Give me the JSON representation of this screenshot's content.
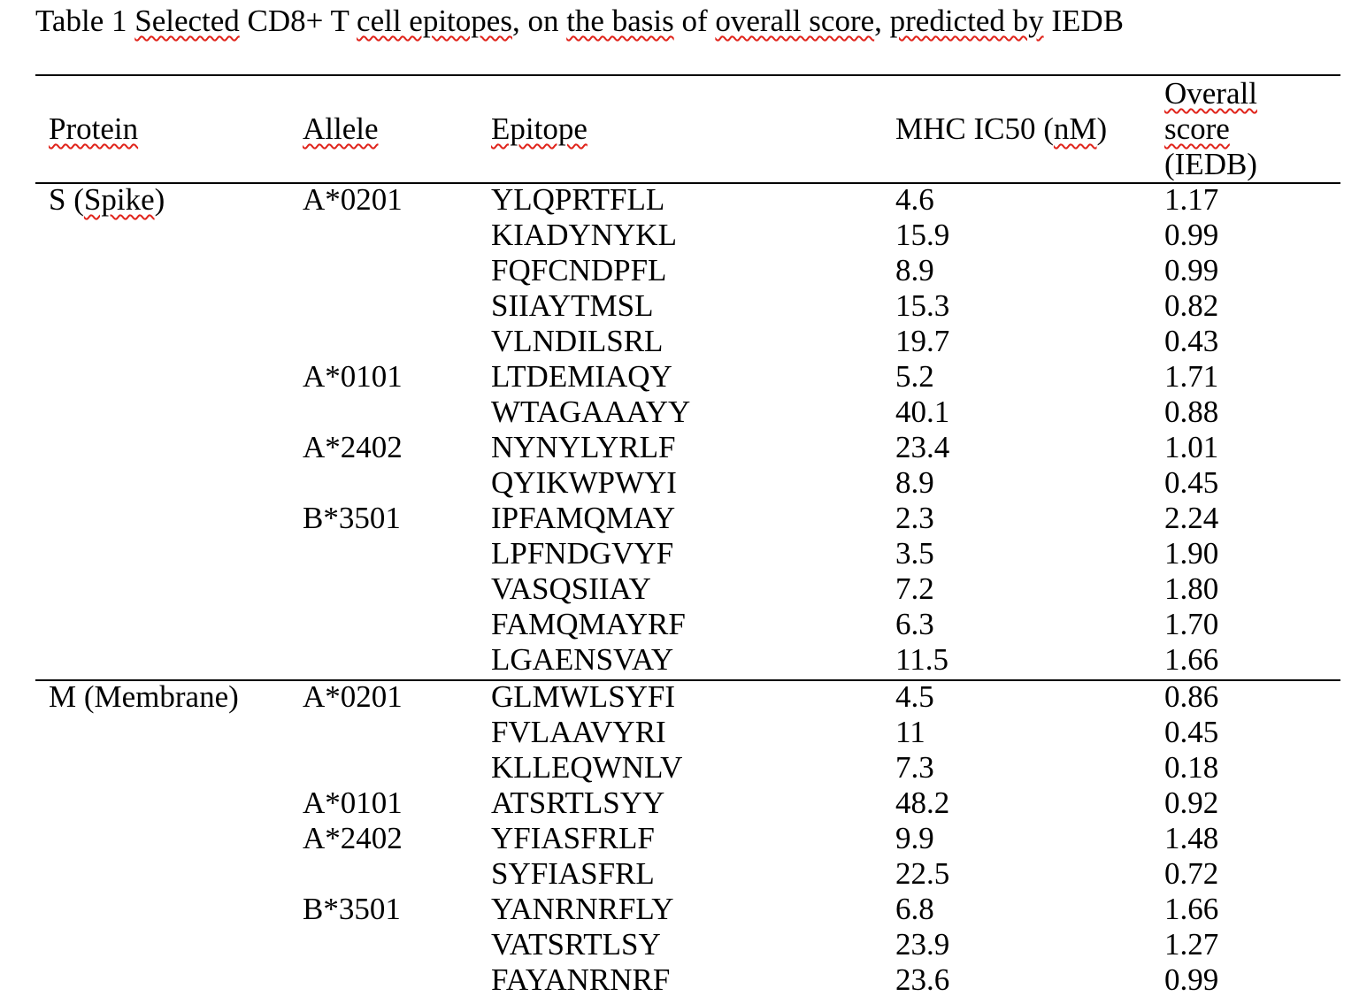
{
  "caption": {
    "prefix": "Table 1 ",
    "w1": "Selected",
    "mid1": " CD8+ T ",
    "w2": "cell epitopes",
    "mid2": ", on ",
    "w3": "the basis",
    "mid3": " of ",
    "w4": "overall score",
    "mid4": ", ",
    "w5": "predicted by",
    "suffix": " IEDB"
  },
  "headers": {
    "protein": "Protein",
    "allele": "Allele",
    "epitope": "Epitope",
    "ic50_prefix": "MHC IC50 (",
    "ic50_unit": "nM",
    "ic50_suffix": ")",
    "score_line1": "Overall",
    "score_line2": "score",
    "score_line3": "(IEDB)"
  },
  "rows": [
    {
      "protein_pre": "S (",
      "protein_sq": "Spike",
      "protein_post": ")",
      "allele": "A*0201",
      "epitope": "YLQPRTFLL",
      "ic50": "4.6",
      "score": "1.17"
    },
    {
      "protein_pre": "",
      "protein_sq": "",
      "protein_post": "",
      "allele": "",
      "epitope": "KIADYNYKL",
      "ic50": "15.9",
      "score": "0.99"
    },
    {
      "protein_pre": "",
      "protein_sq": "",
      "protein_post": "",
      "allele": "",
      "epitope": "FQFCNDPFL",
      "ic50": "8.9",
      "score": "0.99"
    },
    {
      "protein_pre": "",
      "protein_sq": "",
      "protein_post": "",
      "allele": "",
      "epitope": "SIIAYTMSL",
      "ic50": "15.3",
      "score": "0.82"
    },
    {
      "protein_pre": "",
      "protein_sq": "",
      "protein_post": "",
      "allele": "",
      "epitope": "VLNDILSRL",
      "ic50": "19.7",
      "score": "0.43"
    },
    {
      "protein_pre": "",
      "protein_sq": "",
      "protein_post": "",
      "allele": "A*0101",
      "epitope": "LTDEMIAQY",
      "ic50": "5.2",
      "score": "1.71"
    },
    {
      "protein_pre": "",
      "protein_sq": "",
      "protein_post": "",
      "allele": "",
      "epitope": "WTAGAAAYY",
      "ic50": "40.1",
      "score": "0.88"
    },
    {
      "protein_pre": "",
      "protein_sq": "",
      "protein_post": "",
      "allele": "A*2402",
      "epitope": "NYNYLYRLF",
      "ic50": "23.4",
      "score": "1.01"
    },
    {
      "protein_pre": "",
      "protein_sq": "",
      "protein_post": "",
      "allele": "",
      "epitope": "QYIKWPWYI",
      "ic50": "8.9",
      "score": "0.45"
    },
    {
      "protein_pre": "",
      "protein_sq": "",
      "protein_post": "",
      "allele": "B*3501",
      "epitope": "IPFAMQMAY",
      "ic50": "2.3",
      "score": "2.24"
    },
    {
      "protein_pre": "",
      "protein_sq": "",
      "protein_post": "",
      "allele": "",
      "epitope": "LPFNDGVYF",
      "ic50": "3.5",
      "score": "1.90"
    },
    {
      "protein_pre": "",
      "protein_sq": "",
      "protein_post": "",
      "allele": "",
      "epitope": "VASQSIIAY",
      "ic50": "7.2",
      "score": "1.80"
    },
    {
      "protein_pre": "",
      "protein_sq": "",
      "protein_post": "",
      "allele": "",
      "epitope": "FAMQMAYRF",
      "ic50": "6.3",
      "score": "1.70"
    },
    {
      "protein_pre": "",
      "protein_sq": "",
      "protein_post": "",
      "allele": "",
      "epitope": "LGAENSVAY",
      "ic50": "11.5",
      "score": "1.66"
    },
    {
      "protein_pre": "M (Membrane)",
      "protein_sq": "",
      "protein_post": "",
      "allele": "A*0201",
      "epitope": "GLMWLSYFI",
      "ic50": "4.5",
      "score": "0.86"
    },
    {
      "protein_pre": "",
      "protein_sq": "",
      "protein_post": "",
      "allele": "",
      "epitope": "FVLAAVYRI",
      "ic50": "11",
      "score": "0.45"
    },
    {
      "protein_pre": "",
      "protein_sq": "",
      "protein_post": "",
      "allele": "",
      "epitope": "KLLEQWNLV",
      "ic50": "7.3",
      "score": "0.18"
    },
    {
      "protein_pre": "",
      "protein_sq": "",
      "protein_post": "",
      "allele": "A*0101",
      "epitope": "ATSRTLSYY",
      "ic50": "48.2",
      "score": "0.92"
    },
    {
      "protein_pre": "",
      "protein_sq": "",
      "protein_post": "",
      "allele": "A*2402",
      "epitope": "YFIASFRLF",
      "ic50": "9.9",
      "score": "1.48"
    },
    {
      "protein_pre": "",
      "protein_sq": "",
      "protein_post": "",
      "allele": "",
      "epitope": "SYFIASFRL",
      "ic50": "22.5",
      "score": "0.72"
    },
    {
      "protein_pre": "",
      "protein_sq": "",
      "protein_post": "",
      "allele": "B*3501",
      "epitope": "YANRNRFLY",
      "ic50": "6.8",
      "score": "1.66"
    },
    {
      "protein_pre": "",
      "protein_sq": "",
      "protein_post": "",
      "allele": "",
      "epitope": "VATSRTLSY",
      "ic50": "23.9",
      "score": "1.27"
    },
    {
      "protein_pre": "",
      "protein_sq": "",
      "protein_post": "",
      "allele": "",
      "epitope": "FAYANRNRF",
      "ic50": "23.6",
      "score": "0.99"
    }
  ]
}
